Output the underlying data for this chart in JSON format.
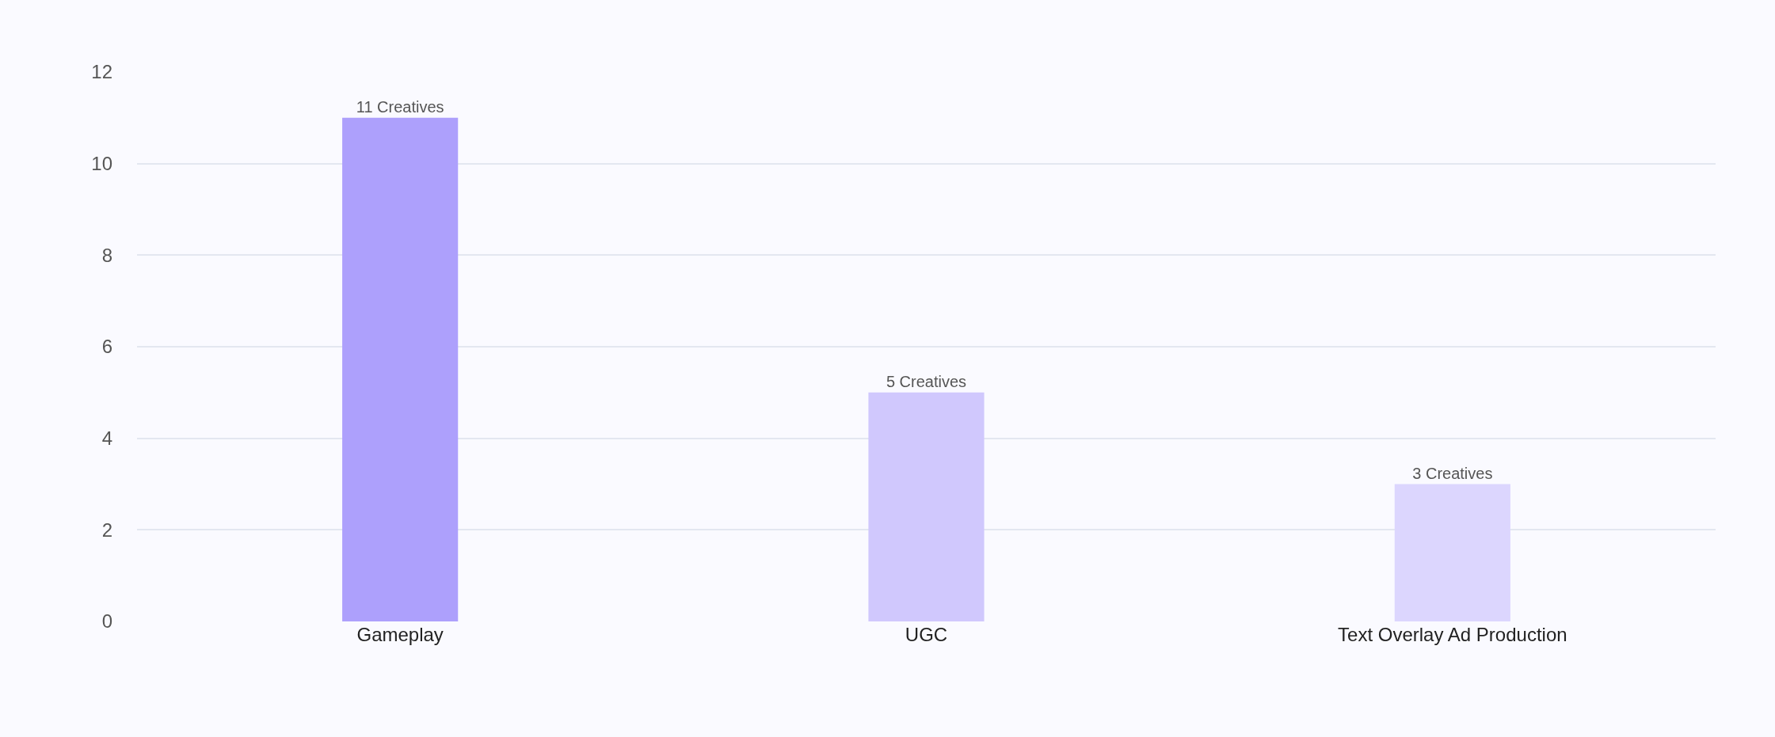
{
  "chart_data": {
    "type": "bar",
    "categories": [
      "Gameplay",
      "UGC",
      "Text Overlay Ad Production"
    ],
    "values": [
      11,
      5,
      3
    ],
    "colors": [
      "#ada0fc",
      "#d0c8fd",
      "#dcd6fe"
    ],
    "value_labels": [
      "11 Creatives",
      "5 Creatives",
      "3 Creatives"
    ],
    "ylim": [
      0,
      12
    ],
    "yticks": [
      0,
      2,
      4,
      6,
      8,
      10,
      12
    ],
    "grid": "y",
    "legend": false
  }
}
